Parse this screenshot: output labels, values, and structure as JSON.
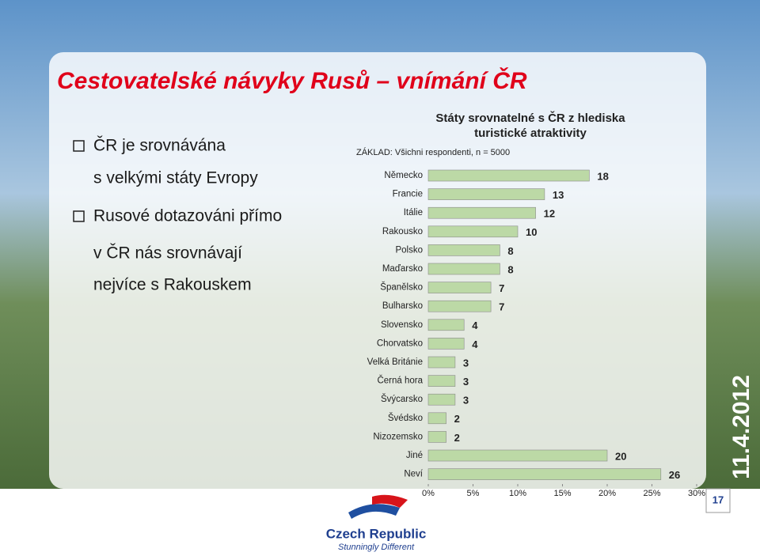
{
  "slide": {
    "title": "Cestovatelské návyky Rusů – vnímání ČR",
    "bullet_lines": [
      "ČR je srovnávána",
      "s velkými státy Evropy",
      "Rusové dotazováni přímo",
      "v ČR nás srovnávají",
      "nejvíce s Rakouskem"
    ],
    "date": "11.4.2012",
    "page_number": "17",
    "logo": {
      "name": "Czech Republic",
      "slogan": "Stunningly Different"
    }
  },
  "chart_data": {
    "type": "bar",
    "orientation": "horizontal",
    "title": [
      "Státy srovnatelné s ČR z hlediska",
      "turistické atraktivity"
    ],
    "subtitle": "ZÁKLAD: Všichni respondenti, n = 5000",
    "categories": [
      "Německo",
      "Francie",
      "Itálie",
      "Rakousko",
      "Polsko",
      "Maďarsko",
      "Španělsko",
      "Bulharsko",
      "Slovensko",
      "Chorvatsko",
      "Velká Británie",
      "Černá hora",
      "Švýcarsko",
      "Švédsko",
      "Nizozemsko",
      "Jiné",
      "Neví"
    ],
    "values": [
      18,
      13,
      12,
      10,
      8,
      8,
      7,
      7,
      4,
      4,
      3,
      3,
      3,
      2,
      2,
      20,
      26
    ],
    "color": "#bcd9a6",
    "xlim": [
      0,
      30
    ],
    "xticks": [
      {
        "value": 0,
        "label": "0%"
      },
      {
        "value": 5,
        "label": "5%"
      },
      {
        "value": 10,
        "label": "10%"
      },
      {
        "value": 15,
        "label": "15%"
      },
      {
        "value": 20,
        "label": "20%"
      },
      {
        "value": 25,
        "label": "25%"
      },
      {
        "value": 30,
        "label": "30%"
      }
    ],
    "grid": false
  }
}
